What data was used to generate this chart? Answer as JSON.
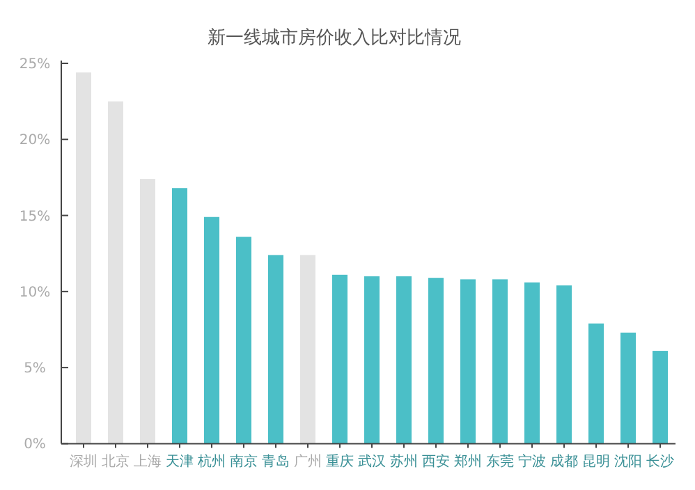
{
  "chart_data": {
    "type": "bar",
    "title": "新一线城市房价收入比对比情况",
    "categories": [
      "深圳",
      "北京",
      "上海",
      "天津",
      "杭州",
      "南京",
      "青岛",
      "广州",
      "重庆",
      "武汉",
      "苏州",
      "西安",
      "郑州",
      "东莞",
      "宁波",
      "成都",
      "昆明",
      "沈阳",
      "长沙"
    ],
    "values": [
      24.4,
      22.5,
      17.4,
      16.8,
      14.9,
      13.6,
      12.4,
      12.4,
      11.1,
      11.0,
      11.0,
      10.9,
      10.8,
      10.8,
      10.6,
      10.4,
      7.9,
      7.3,
      6.1
    ],
    "colors": [
      "#e3e3e3",
      "#e3e3e3",
      "#e3e3e3",
      "#4bbfc7",
      "#4bbfc7",
      "#4bbfc7",
      "#4bbfc7",
      "#e3e3e3",
      "#4bbfc7",
      "#4bbfc7",
      "#4bbfc7",
      "#4bbfc7",
      "#4bbfc7",
      "#4bbfc7",
      "#4bbfc7",
      "#4bbfc7",
      "#4bbfc7",
      "#4bbfc7",
      "#4bbfc7"
    ],
    "ylim": [
      0,
      25
    ],
    "yticks": [
      {
        "value": 0,
        "label": "0%"
      },
      {
        "value": 5,
        "label": "5%"
      },
      {
        "value": 10,
        "label": "10%"
      },
      {
        "value": 15,
        "label": "15%"
      },
      {
        "value": 20,
        "label": "20%"
      },
      {
        "value": 25,
        "label": "25%"
      }
    ]
  }
}
